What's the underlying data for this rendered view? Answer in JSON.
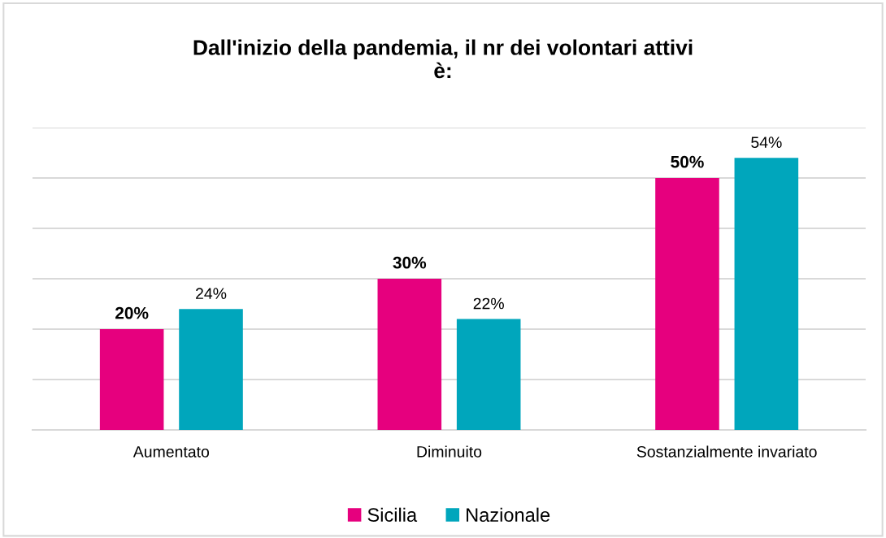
{
  "chart_data": {
    "type": "bar",
    "title": "Dall'inizio della pandemia, il nr dei volontari attivi\nè:",
    "categories": [
      "Aumentato",
      "Diminuito",
      "Sostanzialmente invariato"
    ],
    "series": [
      {
        "name": "Sicilia",
        "color": "#e6007e",
        "values": [
          20,
          30,
          50
        ],
        "value_labels": [
          "20%",
          "30%",
          "50%"
        ]
      },
      {
        "name": "Nazionale",
        "color": "#00a6bc",
        "values": [
          24,
          22,
          54
        ],
        "value_labels": [
          "24%",
          "22%",
          "54%"
        ]
      }
    ],
    "ylim": [
      0,
      60
    ],
    "yticks": [
      {
        "value": 0,
        "label": null
      },
      {
        "value": 10,
        "label": null
      },
      {
        "value": 20,
        "label": null
      },
      {
        "value": 30,
        "label": null
      },
      {
        "value": 40,
        "label": null
      },
      {
        "value": 50,
        "label": null
      },
      {
        "value": 60,
        "label": null
      }
    ],
    "grid": "y",
    "legend": "bottom",
    "tick_labels": "x"
  }
}
